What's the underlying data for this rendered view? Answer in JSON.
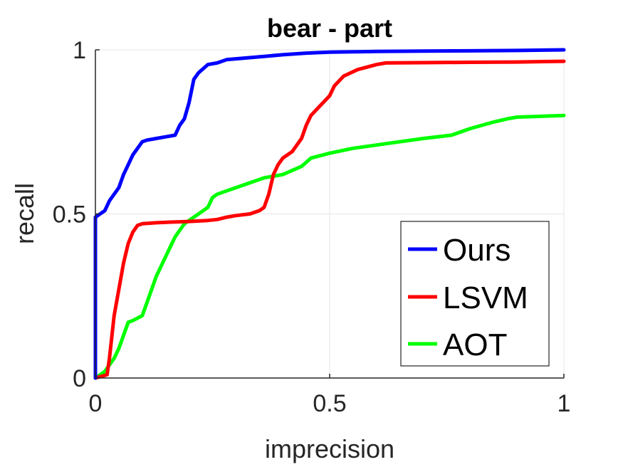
{
  "chart_data": {
    "type": "line",
    "title": "bear - part",
    "xlabel": "imprecision",
    "ylabel": "recall",
    "xlim": [
      0,
      1
    ],
    "ylim": [
      0,
      1
    ],
    "xticks": [
      "0",
      "0.5",
      "1"
    ],
    "yticks": [
      "0",
      "0.5",
      "1"
    ],
    "grid": true,
    "legend_position": "bottom-right",
    "series": [
      {
        "name": "Ours",
        "color": "#0000ff",
        "x": [
          0,
          0,
          0.01,
          0.02,
          0.03,
          0.04,
          0.05,
          0.06,
          0.07,
          0.08,
          0.09,
          0.1,
          0.11,
          0.13,
          0.15,
          0.17,
          0.18,
          0.19,
          0.2,
          0.21,
          0.22,
          0.24,
          0.26,
          0.28,
          0.32,
          0.36,
          0.4,
          0.45,
          0.5,
          0.55,
          0.6,
          0.7,
          0.8,
          0.9,
          1.0
        ],
        "y": [
          0,
          0.49,
          0.5,
          0.51,
          0.54,
          0.56,
          0.58,
          0.62,
          0.65,
          0.68,
          0.7,
          0.72,
          0.725,
          0.73,
          0.735,
          0.74,
          0.77,
          0.79,
          0.84,
          0.91,
          0.93,
          0.955,
          0.96,
          0.97,
          0.975,
          0.98,
          0.985,
          0.99,
          0.993,
          0.994,
          0.995,
          0.996,
          0.997,
          0.998,
          1.0
        ],
        "draw_order": 3
      },
      {
        "name": "LSVM",
        "color": "#ff0000",
        "x": [
          0,
          0.025,
          0.03,
          0.04,
          0.05,
          0.06,
          0.07,
          0.08,
          0.09,
          0.1,
          0.13,
          0.16,
          0.2,
          0.24,
          0.26,
          0.28,
          0.3,
          0.33,
          0.35,
          0.36,
          0.37,
          0.38,
          0.39,
          0.4,
          0.42,
          0.44,
          0.45,
          0.46,
          0.48,
          0.5,
          0.51,
          0.53,
          0.56,
          0.6,
          0.62,
          0.7,
          0.8,
          0.9,
          1.0
        ],
        "y": [
          0,
          0.01,
          0.06,
          0.19,
          0.27,
          0.35,
          0.41,
          0.445,
          0.465,
          0.47,
          0.473,
          0.475,
          0.477,
          0.48,
          0.483,
          0.49,
          0.495,
          0.5,
          0.51,
          0.52,
          0.56,
          0.62,
          0.65,
          0.67,
          0.69,
          0.73,
          0.77,
          0.8,
          0.83,
          0.86,
          0.89,
          0.92,
          0.94,
          0.955,
          0.96,
          0.961,
          0.962,
          0.963,
          0.965
        ],
        "draw_order": 2
      },
      {
        "name": "AOT",
        "color": "#00ff00",
        "x": [
          0,
          0.01,
          0.02,
          0.03,
          0.04,
          0.05,
          0.06,
          0.07,
          0.08,
          0.1,
          0.11,
          0.12,
          0.13,
          0.14,
          0.15,
          0.16,
          0.17,
          0.18,
          0.19,
          0.2,
          0.21,
          0.22,
          0.24,
          0.25,
          0.26,
          0.28,
          0.32,
          0.36,
          0.4,
          0.44,
          0.46,
          0.5,
          0.55,
          0.6,
          0.7,
          0.76,
          0.8,
          0.85,
          0.88,
          0.9,
          1.0
        ],
        "y": [
          0,
          0.01,
          0.02,
          0.04,
          0.06,
          0.09,
          0.13,
          0.17,
          0.175,
          0.19,
          0.23,
          0.27,
          0.31,
          0.34,
          0.37,
          0.4,
          0.43,
          0.45,
          0.47,
          0.48,
          0.49,
          0.5,
          0.52,
          0.55,
          0.56,
          0.57,
          0.59,
          0.61,
          0.62,
          0.645,
          0.67,
          0.685,
          0.7,
          0.71,
          0.73,
          0.74,
          0.76,
          0.78,
          0.79,
          0.795,
          0.8
        ],
        "draw_order": 1
      }
    ]
  }
}
